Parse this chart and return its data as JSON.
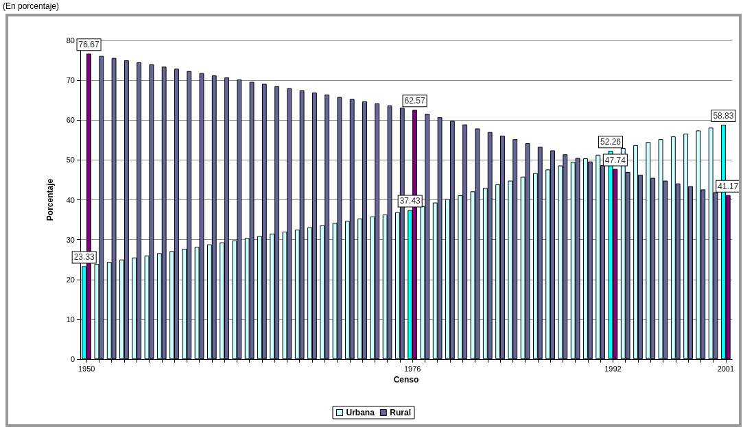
{
  "chart_data": {
    "type": "bar",
    "title": "(En porcentaje)",
    "xlabel": "Censo",
    "ylabel": "Porcentaje",
    "categories": [
      "1950",
      null,
      null,
      null,
      null,
      null,
      null,
      null,
      null,
      null,
      null,
      null,
      null,
      null,
      null,
      null,
      null,
      null,
      null,
      null,
      null,
      null,
      null,
      null,
      null,
      null,
      "1976",
      null,
      null,
      null,
      null,
      null,
      null,
      null,
      null,
      null,
      null,
      null,
      null,
      null,
      null,
      null,
      "1992",
      null,
      null,
      null,
      null,
      null,
      null,
      null,
      null,
      "2001"
    ],
    "series": [
      {
        "name": "Urbana",
        "color": "#ccffff",
        "colors": [
          "#00ffff",
          "#ccffff",
          "#ccffff",
          "#ccffff",
          "#ccffff",
          "#ccffff",
          "#ccffff",
          "#ccffff",
          "#ccffff",
          "#ccffff",
          "#ccffff",
          "#ccffff",
          "#ccffff",
          "#ccffff",
          "#ccffff",
          "#ccffff",
          "#ccffff",
          "#ccffff",
          "#ccffff",
          "#ccffff",
          "#ccffff",
          "#ccffff",
          "#ccffff",
          "#ccffff",
          "#ccffff",
          "#ccffff",
          "#00ffff",
          "#ccffff",
          "#ccffff",
          "#ccffff",
          "#ccffff",
          "#ccffff",
          "#ccffff",
          "#ccffff",
          "#ccffff",
          "#ccffff",
          "#ccffff",
          "#ccffff",
          "#ccffff",
          "#ccffff",
          "#ccffff",
          "#ccffff",
          "#00ffff",
          "#ccffff",
          "#ccffff",
          "#ccffff",
          "#ccffff",
          "#ccffff",
          "#ccffff",
          "#ccffff",
          "#ccffff",
          "#00ffff"
        ],
        "values": [
          23.33,
          23.9,
          24.4,
          25.0,
          25.5,
          26.0,
          26.6,
          27.1,
          27.7,
          28.2,
          28.8,
          29.3,
          29.8,
          30.4,
          30.9,
          31.5,
          32.0,
          32.5,
          33.1,
          33.6,
          34.2,
          34.7,
          35.3,
          35.8,
          36.3,
          36.9,
          37.43,
          38.4,
          39.3,
          40.2,
          41.1,
          42.1,
          43.0,
          43.9,
          44.8,
          45.8,
          46.7,
          47.6,
          48.6,
          49.5,
          50.4,
          51.3,
          52.26,
          53.0,
          53.7,
          54.5,
          55.2,
          55.9,
          56.6,
          57.4,
          58.1,
          58.83
        ],
        "value_labels": [
          "23.33",
          null,
          null,
          null,
          null,
          null,
          null,
          null,
          null,
          null,
          null,
          null,
          null,
          null,
          null,
          null,
          null,
          null,
          null,
          null,
          null,
          null,
          null,
          null,
          null,
          null,
          "37.43",
          null,
          null,
          null,
          null,
          null,
          null,
          null,
          null,
          null,
          null,
          null,
          null,
          null,
          null,
          null,
          "52.26",
          null,
          null,
          null,
          null,
          null,
          null,
          null,
          null,
          "58.83"
        ]
      },
      {
        "name": "Rural",
        "color": "#666699",
        "colors": [
          "#800080",
          "#666699",
          "#666699",
          "#666699",
          "#666699",
          "#666699",
          "#666699",
          "#666699",
          "#666699",
          "#666699",
          "#666699",
          "#666699",
          "#666699",
          "#666699",
          "#666699",
          "#666699",
          "#666699",
          "#666699",
          "#666699",
          "#666699",
          "#666699",
          "#666699",
          "#666699",
          "#666699",
          "#666699",
          "#666699",
          "#800080",
          "#666699",
          "#666699",
          "#666699",
          "#666699",
          "#666699",
          "#666699",
          "#666699",
          "#666699",
          "#666699",
          "#666699",
          "#666699",
          "#666699",
          "#666699",
          "#666699",
          "#666699",
          "#800080",
          "#666699",
          "#666699",
          "#666699",
          "#666699",
          "#666699",
          "#666699",
          "#666699",
          "#666699",
          "#800080"
        ],
        "values": [
          76.67,
          76.1,
          75.6,
          75.0,
          74.5,
          74.0,
          73.4,
          72.9,
          72.3,
          71.8,
          71.2,
          70.7,
          70.2,
          69.6,
          69.1,
          68.5,
          68.0,
          67.5,
          66.9,
          66.4,
          65.8,
          65.3,
          64.7,
          64.2,
          63.7,
          63.1,
          62.57,
          61.6,
          60.7,
          59.8,
          58.9,
          57.9,
          57.0,
          56.1,
          55.2,
          54.2,
          53.3,
          52.4,
          51.4,
          50.5,
          49.6,
          48.7,
          47.74,
          47.0,
          46.3,
          45.5,
          44.8,
          44.1,
          43.4,
          42.6,
          41.9,
          41.17
        ],
        "value_labels": [
          "76.67",
          null,
          null,
          null,
          null,
          null,
          null,
          null,
          null,
          null,
          null,
          null,
          null,
          null,
          null,
          null,
          null,
          null,
          null,
          null,
          null,
          null,
          null,
          null,
          null,
          null,
          "62.57",
          null,
          null,
          null,
          null,
          null,
          null,
          null,
          null,
          null,
          null,
          null,
          null,
          null,
          null,
          null,
          "47.74",
          null,
          null,
          null,
          null,
          null,
          null,
          null,
          null,
          "41.17"
        ]
      }
    ],
    "ylim": [
      0,
      80
    ],
    "yticks": [
      0,
      10,
      20,
      30,
      40,
      50,
      60,
      70,
      80
    ],
    "grid": true,
    "legend": "bottom"
  }
}
